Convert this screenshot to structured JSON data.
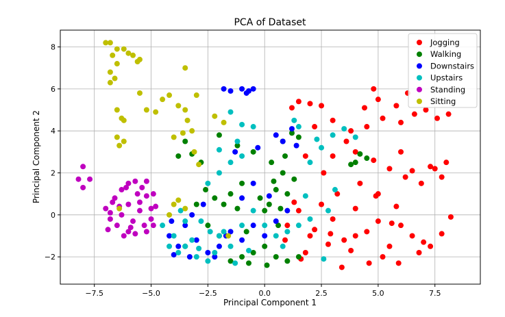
{
  "chart_data": {
    "type": "scatter",
    "title": "PCA of Dataset",
    "xlabel": "Principal Component 1",
    "ylabel": "Principal Component 2",
    "xlim": [
      -9.0,
      9.5
    ],
    "ylim": [
      -3.3,
      8.8
    ],
    "xticks": [
      -7.5,
      -5.0,
      -2.5,
      0.0,
      2.5,
      5.0,
      7.5
    ],
    "xtick_labels": [
      "−7.5",
      "−5.0",
      "−2.5",
      "0.0",
      "2.5",
      "5.0",
      "7.5"
    ],
    "yticks": [
      -2,
      0,
      2,
      4,
      6,
      8
    ],
    "ytick_labels": [
      "−2",
      "0",
      "2",
      "4",
      "6",
      "8"
    ],
    "grid": true,
    "legend_position": "top-right",
    "series": [
      {
        "name": "Jogging",
        "color": "#ff0000",
        "points": [
          [
            1.0,
            -0.5
          ],
          [
            1.5,
            0.2
          ],
          [
            2.0,
            -1.0
          ],
          [
            2.5,
            0.5
          ],
          [
            3.0,
            -0.2
          ],
          [
            3.5,
            -1.2
          ],
          [
            4.0,
            0.3
          ],
          [
            4.5,
            -0.8
          ],
          [
            5.0,
            -0.3
          ],
          [
            5.5,
            -1.5
          ],
          [
            6.0,
            -0.5
          ],
          [
            6.5,
            -1.0
          ],
          [
            7.0,
            -1.3
          ],
          [
            7.3,
            -1.5
          ],
          [
            7.8,
            -0.9
          ],
          [
            6.8,
            -1.8
          ],
          [
            5.2,
            -2.0
          ],
          [
            4.6,
            -2.3
          ],
          [
            3.8,
            -1.7
          ],
          [
            2.8,
            -1.4
          ],
          [
            2.2,
            -0.7
          ],
          [
            1.8,
            -1.8
          ],
          [
            1.3,
            0.6
          ],
          [
            3.2,
            1.0
          ],
          [
            4.2,
            1.5
          ],
          [
            5.0,
            1.0
          ],
          [
            5.8,
            0.4
          ],
          [
            6.2,
            1.8
          ],
          [
            6.9,
            1.5
          ],
          [
            7.5,
            2.2
          ],
          [
            8.0,
            2.5
          ],
          [
            5.5,
            2.2
          ],
          [
            4.8,
            2.6
          ],
          [
            4.0,
            3.0
          ],
          [
            3.6,
            3.5
          ],
          [
            4.5,
            4.2
          ],
          [
            5.2,
            4.6
          ],
          [
            6.0,
            4.4
          ],
          [
            6.6,
            4.8
          ],
          [
            7.1,
            5.0
          ],
          [
            7.6,
            4.6
          ],
          [
            8.1,
            4.8
          ],
          [
            5.8,
            5.2
          ],
          [
            5.0,
            5.5
          ],
          [
            6.3,
            5.8
          ],
          [
            4.8,
            6.0
          ],
          [
            2.0,
            5.3
          ],
          [
            1.5,
            5.4
          ],
          [
            2.5,
            5.2
          ],
          [
            1.2,
            5.1
          ],
          [
            3.0,
            4.5
          ],
          [
            3.8,
            4.0
          ],
          [
            2.6,
            2.0
          ],
          [
            3.0,
            2.8
          ],
          [
            8.2,
            -0.1
          ],
          [
            7.3,
            2.3
          ],
          [
            6.0,
            3.0
          ],
          [
            4.4,
            5.1
          ],
          [
            1.8,
            2.8
          ],
          [
            2.2,
            4.2
          ],
          [
            0.9,
            -1.2
          ],
          [
            1.6,
            -2.1
          ],
          [
            3.4,
            -2.5
          ],
          [
            5.9,
            -2.3
          ],
          [
            4.0,
            -1.0
          ],
          [
            2.9,
            -0.9
          ],
          [
            5.6,
            -0.4
          ],
          [
            4.9,
            0.9
          ],
          [
            6.5,
            2.1
          ],
          [
            7.8,
            1.8
          ]
        ]
      },
      {
        "name": "Walking",
        "color": "#008000",
        "points": [
          [
            0.2,
            0.5
          ],
          [
            0.5,
            1.2
          ],
          [
            0.8,
            2.0
          ],
          [
            0.3,
            2.5
          ],
          [
            0.6,
            -0.5
          ],
          [
            1.0,
            1.0
          ],
          [
            0.0,
            -1.5
          ],
          [
            -0.5,
            -1.8
          ],
          [
            -1.0,
            -2.0
          ],
          [
            -1.5,
            -2.2
          ],
          [
            0.5,
            -2.0
          ],
          [
            1.0,
            -2.2
          ],
          [
            1.5,
            -2.0
          ],
          [
            -2.0,
            -1.0
          ],
          [
            -2.5,
            -0.5
          ],
          [
            -3.0,
            0.5
          ],
          [
            -2.2,
            0.8
          ],
          [
            -1.5,
            1.0
          ],
          [
            -1.0,
            1.5
          ],
          [
            -2.8,
            2.5
          ],
          [
            -3.5,
            3.5
          ],
          [
            -3.8,
            2.8
          ],
          [
            -1.2,
            3.3
          ],
          [
            -0.5,
            3.0
          ],
          [
            0.8,
            3.5
          ],
          [
            1.2,
            3.9
          ],
          [
            1.5,
            3.7
          ],
          [
            4.0,
            2.5
          ],
          [
            4.5,
            2.7
          ],
          [
            3.8,
            2.4
          ],
          [
            4.2,
            2.9
          ],
          [
            0.9,
            2.8
          ],
          [
            0.4,
            1.6
          ],
          [
            -0.2,
            0.8
          ],
          [
            -1.8,
            0.5
          ],
          [
            -2.6,
            1.2
          ],
          [
            -0.8,
            -0.8
          ],
          [
            0.0,
            0.2
          ],
          [
            -3.2,
            2.9
          ],
          [
            -2.0,
            3.8
          ],
          [
            0.7,
            0.3
          ],
          [
            1.3,
            1.7
          ],
          [
            0.1,
            -2.4
          ],
          [
            -0.7,
            -2.3
          ],
          [
            -3.5,
            -1.5
          ],
          [
            -1.2,
            0.3
          ]
        ]
      },
      {
        "name": "Downstairs",
        "color": "#0000ff",
        "points": [
          [
            -4.2,
            -1.0
          ],
          [
            -3.8,
            -1.5
          ],
          [
            -3.5,
            -0.5
          ],
          [
            -3.0,
            -1.2
          ],
          [
            -2.5,
            -1.8
          ],
          [
            -2.0,
            -1.5
          ],
          [
            -1.5,
            -0.8
          ],
          [
            -1.0,
            -1.2
          ],
          [
            -0.5,
            -0.5
          ],
          [
            0.0,
            -1.0
          ],
          [
            0.5,
            -0.3
          ],
          [
            1.0,
            0.2
          ],
          [
            -4.0,
            -1.9
          ],
          [
            -2.2,
            -2.0
          ],
          [
            -1.8,
            6.0
          ],
          [
            -1.5,
            5.9
          ],
          [
            -1.0,
            6.0
          ],
          [
            -0.7,
            5.9
          ],
          [
            -0.5,
            6.0
          ],
          [
            -0.8,
            5.8
          ],
          [
            0.5,
            3.8
          ],
          [
            0.8,
            3.5
          ],
          [
            1.2,
            4.1
          ],
          [
            -0.3,
            3.2
          ],
          [
            -1.3,
            3.0
          ],
          [
            -0.5,
            1.5
          ],
          [
            -1.0,
            0.8
          ],
          [
            -3.2,
            0.0
          ],
          [
            -2.7,
            0.5
          ],
          [
            0.2,
            0.9
          ],
          [
            1.4,
            3.3
          ],
          [
            -4.1,
            -0.3
          ],
          [
            -3.3,
            -2.0
          ],
          [
            -1.7,
            -1.0
          ]
        ]
      },
      {
        "name": "Upstairs",
        "color": "#00bfbf",
        "points": [
          [
            -4.5,
            -0.5
          ],
          [
            -4.0,
            -1.0
          ],
          [
            -3.5,
            -1.5
          ],
          [
            -3.0,
            -2.0
          ],
          [
            -2.5,
            -2.2
          ],
          [
            -2.0,
            -1.0
          ],
          [
            -1.5,
            -1.5
          ],
          [
            -1.0,
            -0.5
          ],
          [
            -3.8,
            -1.8
          ],
          [
            -3.2,
            -1.2
          ],
          [
            -2.8,
            -0.3
          ],
          [
            -2.2,
            -1.8
          ],
          [
            -1.8,
            -0.8
          ],
          [
            -4.2,
            -1.5
          ],
          [
            -0.5,
            0.2
          ],
          [
            0.0,
            -0.5
          ],
          [
            0.5,
            -1.0
          ],
          [
            1.0,
            -0.8
          ],
          [
            1.5,
            -0.5
          ],
          [
            2.0,
            -0.2
          ],
          [
            -2.5,
            1.5
          ],
          [
            -2.0,
            2.0
          ],
          [
            -1.5,
            2.5
          ],
          [
            -1.0,
            2.8
          ],
          [
            -0.5,
            4.2
          ],
          [
            -1.0,
            4.3
          ],
          [
            -1.2,
            3.5
          ],
          [
            -1.5,
            4.9
          ],
          [
            -2.0,
            3.1
          ],
          [
            2.0,
            2.5
          ],
          [
            2.5,
            3.2
          ],
          [
            3.0,
            3.8
          ],
          [
            3.5,
            4.1
          ],
          [
            1.5,
            4.2
          ],
          [
            2.3,
            3.6
          ],
          [
            4.0,
            3.7
          ],
          [
            1.3,
            4.5
          ],
          [
            -3.5,
            -0.3
          ],
          [
            -2.9,
            -1.6
          ],
          [
            -3.7,
            0.2
          ],
          [
            -1.3,
            -2.3
          ],
          [
            -2.4,
            -0.8
          ],
          [
            0.8,
            -1.5
          ],
          [
            2.6,
            -2.1
          ],
          [
            3.1,
            1.2
          ],
          [
            2.8,
            0.2
          ],
          [
            1.8,
            0.9
          ],
          [
            -0.7,
            -1.7
          ]
        ]
      },
      {
        "name": "Standing",
        "color": "#bf00bf",
        "points": [
          [
            -7.0,
            0.3
          ],
          [
            -6.8,
            -0.2
          ],
          [
            -6.5,
            -0.5
          ],
          [
            -6.3,
            0.0
          ],
          [
            -6.0,
            -0.8
          ],
          [
            -5.8,
            -0.3
          ],
          [
            -5.5,
            0.2
          ],
          [
            -5.3,
            -0.5
          ],
          [
            -5.0,
            -0.2
          ],
          [
            -6.9,
            -0.7
          ],
          [
            -6.2,
            -1.0
          ],
          [
            -5.7,
            -0.9
          ],
          [
            -6.6,
            0.8
          ],
          [
            -6.3,
            1.2
          ],
          [
            -6.0,
            1.5
          ],
          [
            -5.7,
            1.6
          ],
          [
            -5.4,
            1.3
          ],
          [
            -5.2,
            0.9
          ],
          [
            -5.5,
            0.6
          ],
          [
            -5.0,
            0.3
          ],
          [
            -6.0,
            0.5
          ],
          [
            -6.4,
            0.4
          ],
          [
            -8.0,
            2.3
          ],
          [
            -8.2,
            1.7
          ],
          [
            -8.0,
            1.3
          ],
          [
            -7.7,
            1.7
          ],
          [
            -5.2,
            -0.8
          ],
          [
            -4.9,
            -0.5
          ],
          [
            -4.8,
            0.4
          ],
          [
            -5.6,
            1.0
          ],
          [
            -6.7,
            0.6
          ],
          [
            -5.9,
            -0.6
          ],
          [
            -5.2,
            1.6
          ],
          [
            -4.9,
            1.0
          ],
          [
            -6.1,
            1.3
          ],
          [
            -6.8,
            0.1
          ]
        ]
      },
      {
        "name": "Sitting",
        "color": "#bfbf00",
        "points": [
          [
            -7.0,
            8.2
          ],
          [
            -6.8,
            8.2
          ],
          [
            -6.5,
            7.9
          ],
          [
            -6.2,
            7.9
          ],
          [
            -6.0,
            7.7
          ],
          [
            -5.8,
            7.6
          ],
          [
            -5.6,
            7.3
          ],
          [
            -5.5,
            7.4
          ],
          [
            -6.7,
            7.6
          ],
          [
            -6.5,
            7.2
          ],
          [
            -6.8,
            6.8
          ],
          [
            -6.6,
            6.5
          ],
          [
            -6.8,
            6.3
          ],
          [
            -6.5,
            5.0
          ],
          [
            -6.3,
            4.6
          ],
          [
            -6.2,
            4.5
          ],
          [
            -6.5,
            3.7
          ],
          [
            -6.4,
            3.3
          ],
          [
            -6.2,
            3.5
          ],
          [
            -3.5,
            7.0
          ],
          [
            -3.5,
            5.0
          ],
          [
            -3.4,
            4.5
          ],
          [
            -3.2,
            4.0
          ],
          [
            -3.0,
            5.7
          ],
          [
            -3.1,
            3.0
          ],
          [
            -2.2,
            4.7
          ],
          [
            -1.8,
            4.4
          ],
          [
            -2.9,
            2.4
          ],
          [
            -5.5,
            5.8
          ],
          [
            -5.2,
            5.0
          ],
          [
            -4.8,
            4.9
          ],
          [
            -4.5,
            5.5
          ],
          [
            -4.2,
            5.7
          ],
          [
            -3.8,
            5.2
          ],
          [
            -3.6,
            3.9
          ],
          [
            -4.0,
            3.7
          ],
          [
            -4.0,
            0.5
          ],
          [
            -3.8,
            0.7
          ],
          [
            -3.5,
            0.3
          ],
          [
            -4.2,
            0.0
          ],
          [
            -1.6,
            -1.0
          ],
          [
            -6.4,
            0.3
          ]
        ]
      }
    ]
  }
}
